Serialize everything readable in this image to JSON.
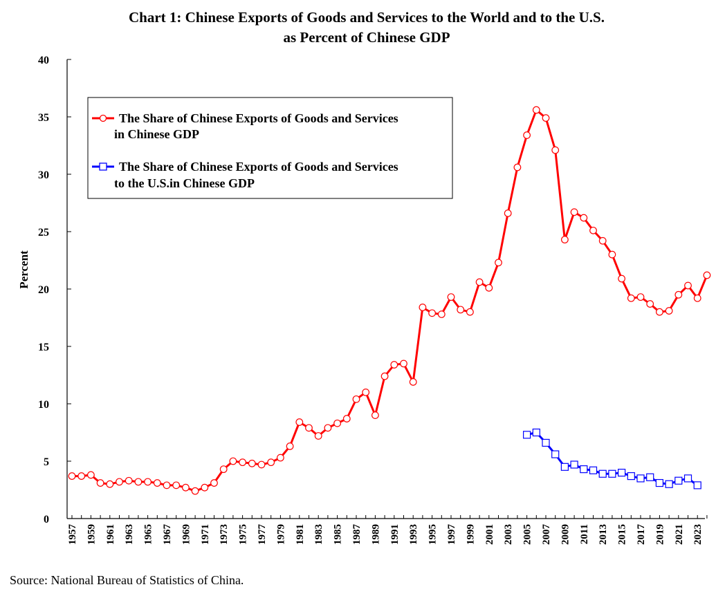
{
  "chart_data": {
    "type": "line",
    "title": [
      "Chart 1: Chinese Exports of Goods and Services to the World and to the U.S.",
      "as Percent of Chinese GDP"
    ],
    "ylabel": "Percent",
    "xlabel": "",
    "ylim": [
      0,
      40
    ],
    "yticks": [
      0,
      5,
      10,
      15,
      20,
      25,
      30,
      35,
      40
    ],
    "xlim": [
      1957,
      2024
    ],
    "xtick_labels": [
      "1957",
      "1959",
      "1961",
      "1963",
      "1965",
      "1967",
      "1969",
      "1971",
      "1973",
      "1975",
      "1977",
      "1979",
      "1981",
      "1983",
      "1985",
      "1987",
      "1989",
      "1991",
      "1993",
      "1995",
      "1997",
      "1999",
      "2001",
      "2003",
      "2005",
      "2007",
      "2009",
      "2011",
      "2013",
      "2015",
      "2017",
      "2019",
      "2021",
      "2023"
    ],
    "grid": false,
    "legend_position": "top-left",
    "series": [
      {
        "name_lines": [
          "The Share of Chinese Exports of Goods and Services",
          "in Chinese GDP"
        ],
        "color": "#ff0000",
        "marker": "circle",
        "x": [
          1957,
          1958,
          1959,
          1960,
          1961,
          1962,
          1963,
          1964,
          1965,
          1966,
          1967,
          1968,
          1969,
          1970,
          1971,
          1972,
          1973,
          1974,
          1975,
          1976,
          1977,
          1978,
          1979,
          1980,
          1981,
          1982,
          1983,
          1984,
          1985,
          1986,
          1987,
          1988,
          1989,
          1990,
          1991,
          1992,
          1993,
          1994,
          1995,
          1996,
          1997,
          1998,
          1999,
          2000,
          2001,
          2002,
          2003,
          2004,
          2005,
          2006,
          2007,
          2008,
          2009,
          2010,
          2011,
          2012,
          2013,
          2014,
          2015,
          2016,
          2017,
          2018,
          2019,
          2020,
          2021,
          2022,
          2023,
          2024
        ],
        "values": [
          3.7,
          3.7,
          3.8,
          3.1,
          3.0,
          3.2,
          3.3,
          3.2,
          3.2,
          3.1,
          2.9,
          2.9,
          2.7,
          2.4,
          2.7,
          3.1,
          4.3,
          5.0,
          4.9,
          4.8,
          4.7,
          4.9,
          5.3,
          6.3,
          8.4,
          7.9,
          7.2,
          7.9,
          8.3,
          8.7,
          10.4,
          11.0,
          9.0,
          12.4,
          13.4,
          13.5,
          11.9,
          18.4,
          17.9,
          17.8,
          19.3,
          18.2,
          18.0,
          20.6,
          20.1,
          22.3,
          26.6,
          30.6,
          33.4,
          35.6,
          34.9,
          32.1,
          24.3,
          26.7,
          26.2,
          25.1,
          24.2,
          23.0,
          20.9,
          19.2,
          19.3,
          18.7,
          18.0,
          18.1,
          19.5,
          20.3,
          19.2,
          21.2
        ]
      },
      {
        "name_lines": [
          "The Share of Chinese Exports of Goods and Services",
          "to the U.S.in Chinese GDP"
        ],
        "color": "#0000ff",
        "marker": "square",
        "x": [
          2005,
          2006,
          2007,
          2008,
          2009,
          2010,
          2011,
          2012,
          2013,
          2014,
          2015,
          2016,
          2017,
          2018,
          2019,
          2020,
          2021,
          2022,
          2023
        ],
        "values": [
          7.3,
          7.5,
          6.6,
          5.6,
          4.5,
          4.7,
          4.3,
          4.2,
          3.9,
          3.9,
          4.0,
          3.7,
          3.5,
          3.6,
          3.1,
          3.0,
          3.3,
          3.5,
          2.9
        ]
      }
    ]
  },
  "source": "Source: National Bureau of Statistics of China."
}
